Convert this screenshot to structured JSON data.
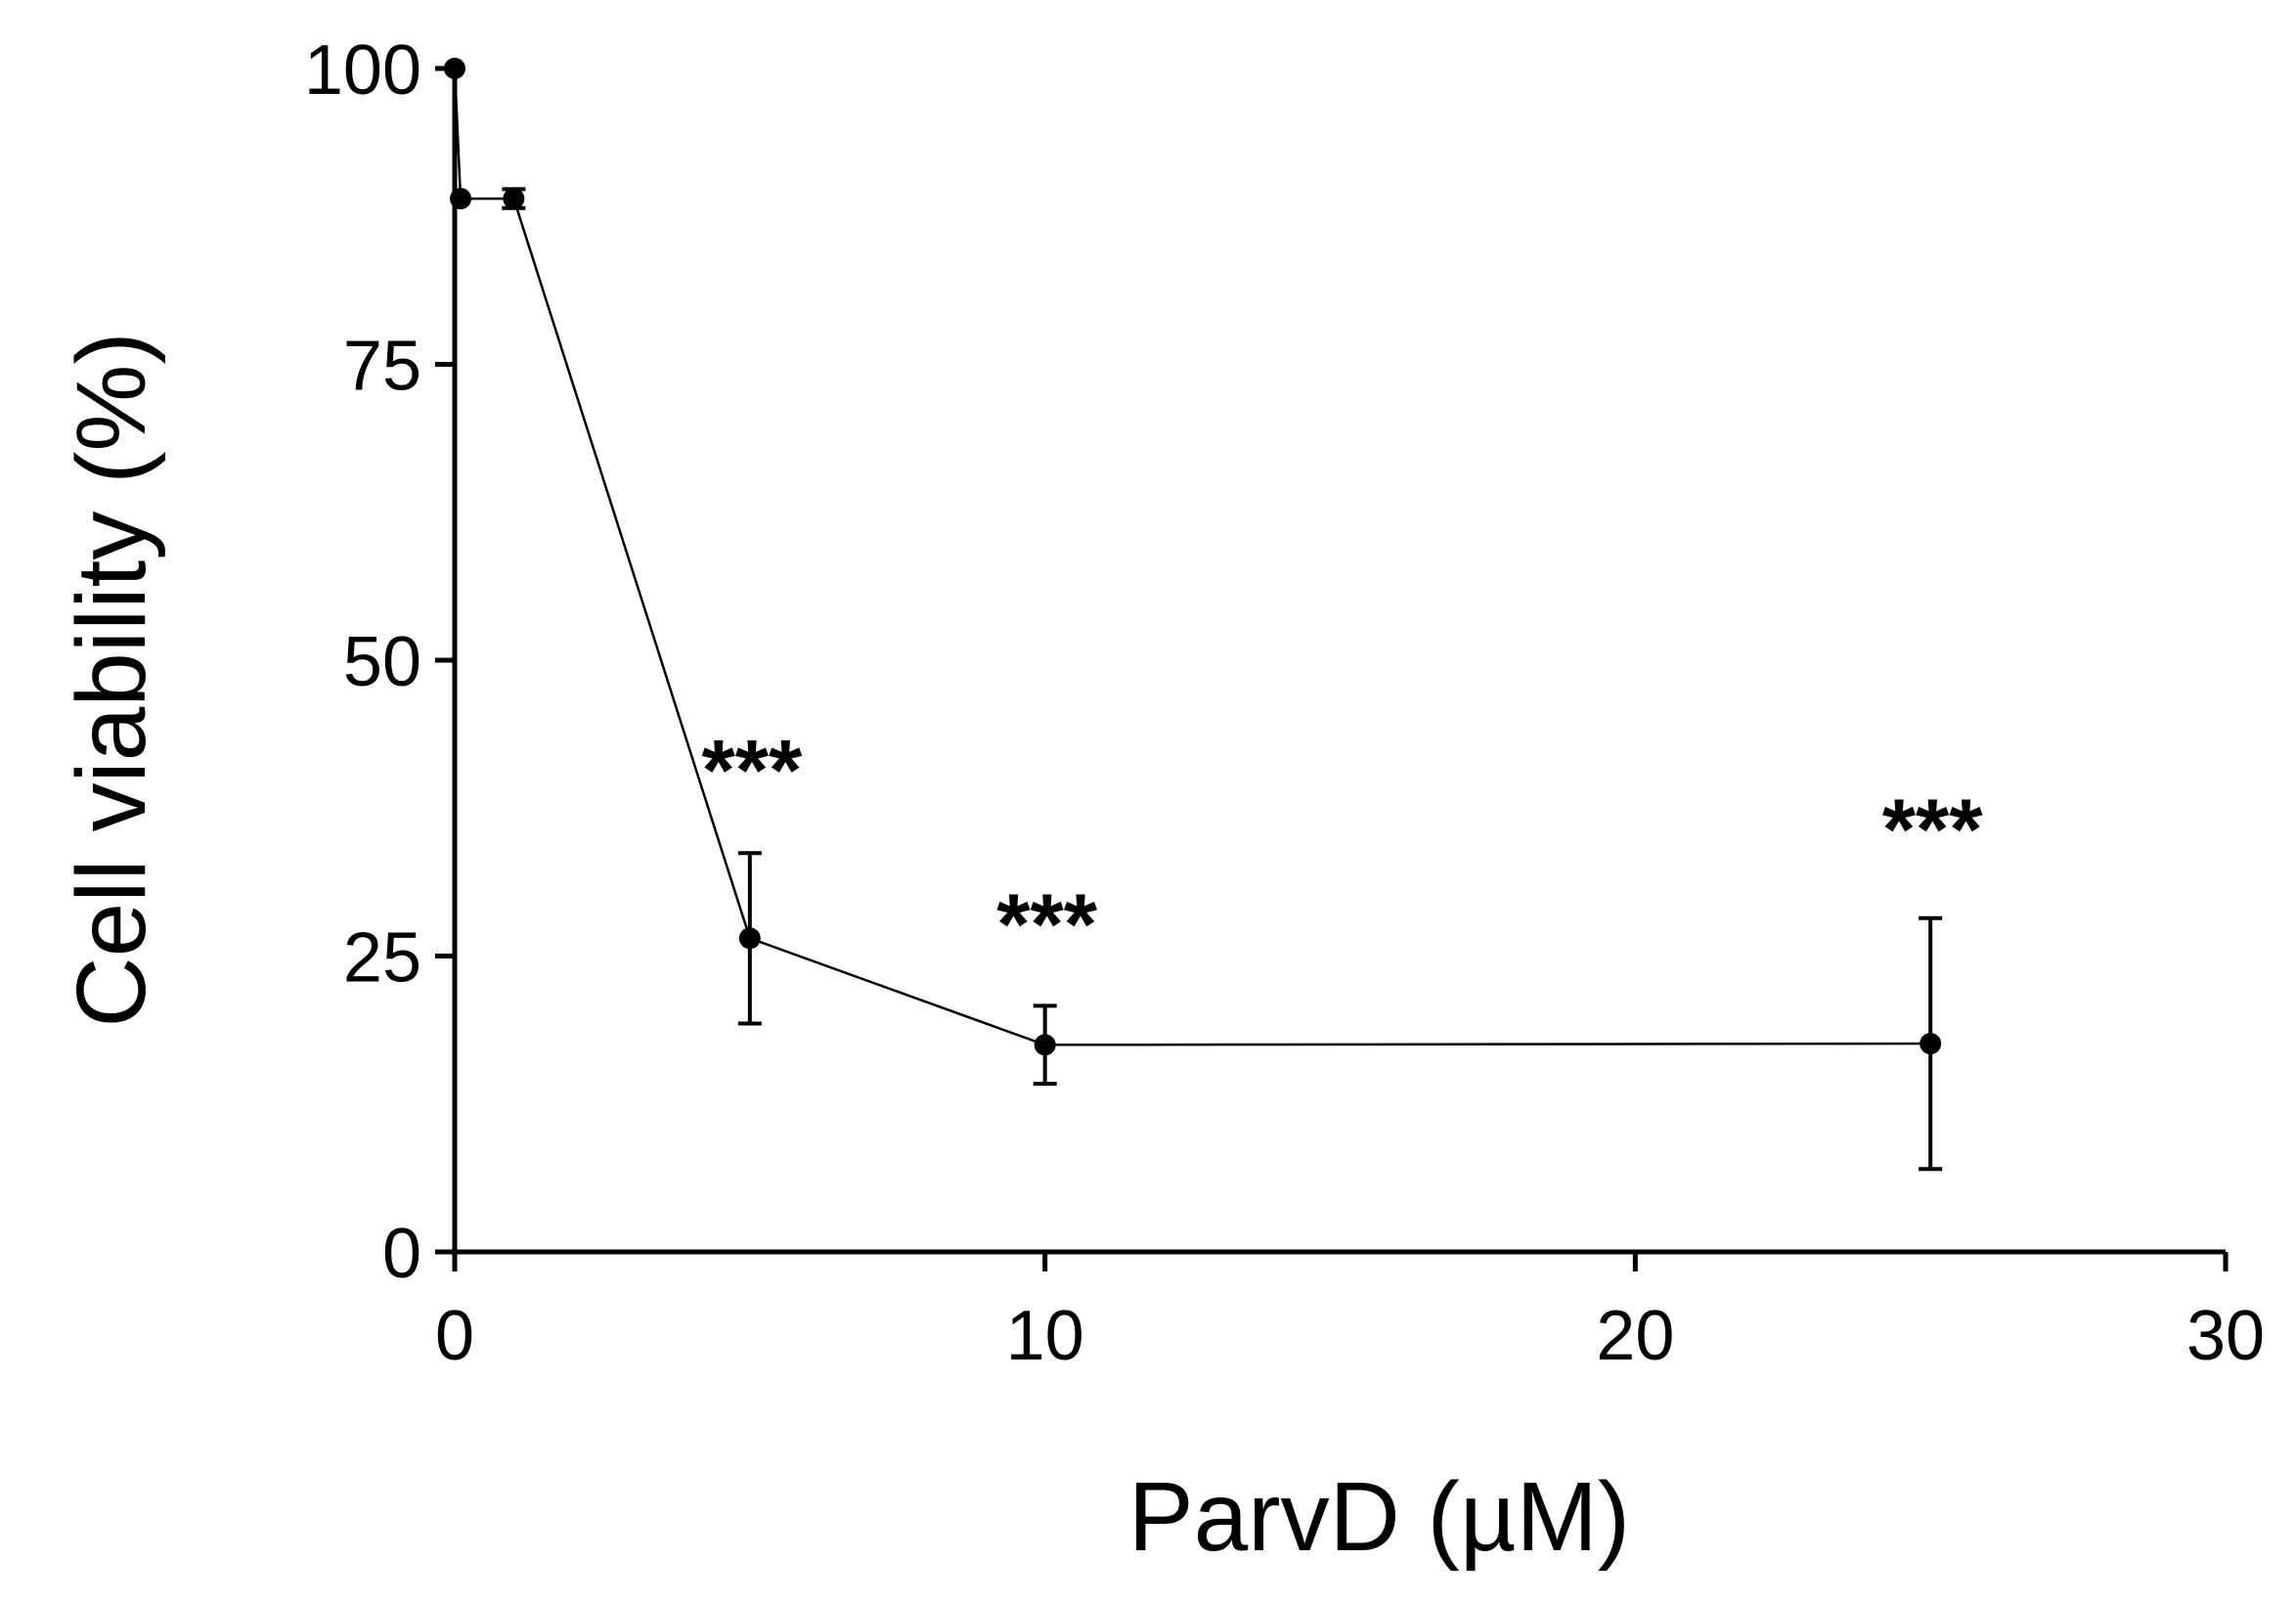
{
  "chart_data": {
    "type": "line",
    "title": "",
    "xlabel": "ParvD (µM)",
    "ylabel": "Cell viability (%)",
    "xlim": [
      0,
      30
    ],
    "ylim": [
      0,
      100
    ],
    "xticks": [
      0,
      10,
      20,
      30
    ],
    "yticks": [
      0,
      25,
      50,
      75,
      100
    ],
    "grid": false,
    "legend": "none",
    "series": [
      {
        "points": [
          {
            "x": 0,
            "y": 100,
            "err": 0
          },
          {
            "x": 0.1,
            "y": 89,
            "err": 0
          },
          {
            "x": 1,
            "y": 89,
            "err": 0.8
          },
          {
            "x": 5,
            "y": 26.5,
            "err": 7.2
          },
          {
            "x": 10,
            "y": 17.5,
            "err": 3.3
          },
          {
            "x": 25,
            "y": 17.6,
            "err": 10.6
          }
        ]
      }
    ],
    "annotations": [
      {
        "text": "***",
        "x": 5,
        "y": 43
      },
      {
        "text": "***",
        "x": 10,
        "y": 30
      },
      {
        "text": "***",
        "x": 25,
        "y": 38
      }
    ],
    "colors": {
      "line": "#000000",
      "marker": "#000000"
    }
  }
}
